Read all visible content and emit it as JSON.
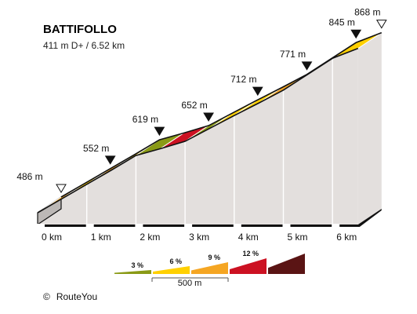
{
  "chart_data": {
    "type": "area",
    "title": "BATTIFOLLO",
    "subtitle": "411 m D+ / 6.52 km",
    "x_unit": "km",
    "y_unit": "m",
    "xlim": [
      0,
      6.52
    ],
    "x_ticks": [
      "0 km",
      "1 km",
      "2 km",
      "3 km",
      "4 km",
      "5 km",
      "6 km"
    ],
    "profile": [
      {
        "km": 0.0,
        "elev": 486
      },
      {
        "km": 0.5,
        "elev": 519
      },
      {
        "km": 1.0,
        "elev": 552
      },
      {
        "km": 1.5,
        "elev": 585
      },
      {
        "km": 2.0,
        "elev": 619
      },
      {
        "km": 2.5,
        "elev": 635
      },
      {
        "km": 3.0,
        "elev": 652
      },
      {
        "km": 3.5,
        "elev": 682
      },
      {
        "km": 4.0,
        "elev": 712
      },
      {
        "km": 4.5,
        "elev": 741
      },
      {
        "km": 5.0,
        "elev": 771
      },
      {
        "km": 5.5,
        "elev": 808
      },
      {
        "km": 6.0,
        "elev": 845
      },
      {
        "km": 6.52,
        "elev": 868
      }
    ],
    "segment_colors": [
      "#f5a623",
      "#ffd000",
      "#f5a623",
      "#ffd000",
      "#8a9a16",
      "#cc1122",
      "#8a9a16",
      "#ffd000",
      "#ffd000",
      "#f5a623",
      "#f5a623",
      "#ffd000",
      "#ffd000"
    ],
    "elevation_labels": [
      {
        "km": 0.0,
        "text": "486 m",
        "marker": "hollow"
      },
      {
        "km": 1.0,
        "text": "552 m",
        "marker": "filled"
      },
      {
        "km": 2.0,
        "text": "619 m",
        "marker": "filled"
      },
      {
        "km": 3.0,
        "text": "652 m",
        "marker": "filled"
      },
      {
        "km": 4.0,
        "text": "712 m",
        "marker": "filled"
      },
      {
        "km": 5.0,
        "text": "771 m",
        "marker": "filled"
      },
      {
        "km": 6.0,
        "text": "845 m",
        "marker": "filled"
      },
      {
        "km": 6.52,
        "text": "868 m",
        "marker": "hollow"
      }
    ],
    "legend": {
      "items": [
        {
          "label": "3 %",
          "color": "#8a9a16"
        },
        {
          "label": "6 %",
          "color": "#ffd000"
        },
        {
          "label": "9 %",
          "color": "#f5a623"
        },
        {
          "label": "12 %",
          "color": "#cc1122"
        },
        {
          "label": "",
          "color": "#5a1414"
        }
      ],
      "scale_label": "500 m"
    },
    "colors": {
      "side": "#e3dfdd",
      "base": "#bcb8b6",
      "outline": "#111111"
    }
  },
  "credit": {
    "symbol": "©",
    "text": "RouteYou"
  }
}
